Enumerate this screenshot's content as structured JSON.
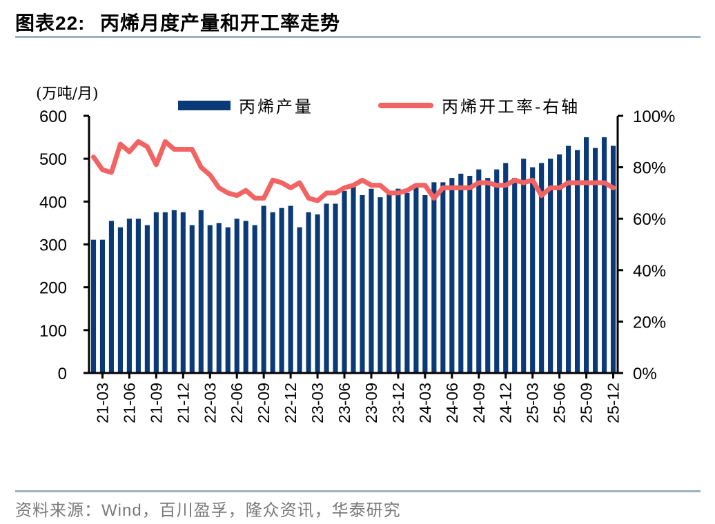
{
  "header": {
    "figure_label": "图表",
    "figure_number": "22:",
    "title": "丙烯月度产量和开工率走势"
  },
  "footer": {
    "source_prefix": "资料来源：",
    "source_latin": "Wind",
    "source_rest": "，百川盈孚，隆众资讯，华泰研究"
  },
  "axis": {
    "left_unit": "(万吨/月)",
    "left_ticks": [
      "0",
      "100",
      "200",
      "300",
      "400",
      "500",
      "600"
    ],
    "right_ticks": [
      "0%",
      "20%",
      "40%",
      "60%",
      "80%",
      "100%"
    ],
    "x_tick_labels": [
      "21-03",
      "21-06",
      "21-09",
      "21-12",
      "22-03",
      "22-06",
      "22-09",
      "22-12",
      "23-03",
      "23-06",
      "23-09",
      "23-12",
      "24-03",
      "24-06",
      "24-09",
      "24-12",
      "25-03",
      "25-06",
      "25-09",
      "25-12"
    ]
  },
  "legend": {
    "bar_label": "丙烯产量",
    "line_label": "丙烯开工率-右轴"
  },
  "colors": {
    "bar": "#0b3a78",
    "line": "#f26463",
    "rule": "#9fb0c0"
  },
  "chart_data": {
    "type": "bar+line",
    "title": "丙烯月度产量和开工率走势",
    "xlabel": "",
    "ylabel": "万吨/月",
    "y2label": "开工率",
    "ylim": [
      0,
      600
    ],
    "y2lim": [
      0,
      100
    ],
    "grid": false,
    "legend_position": "top",
    "categories": [
      "21-02",
      "21-03",
      "21-04",
      "21-05",
      "21-06",
      "21-07",
      "21-08",
      "21-09",
      "21-10",
      "21-11",
      "21-12",
      "22-01",
      "22-02",
      "22-03",
      "22-04",
      "22-05",
      "22-06",
      "22-07",
      "22-08",
      "22-09",
      "22-10",
      "22-11",
      "22-12",
      "23-01",
      "23-02",
      "23-03",
      "23-04",
      "23-05",
      "23-06",
      "23-07",
      "23-08",
      "23-09",
      "23-10",
      "23-11",
      "23-12",
      "24-01",
      "24-02",
      "24-03",
      "24-04",
      "24-05",
      "24-06",
      "24-07",
      "24-08",
      "24-09",
      "24-10",
      "24-11",
      "24-12",
      "25-01",
      "25-02",
      "25-03",
      "25-04",
      "25-05",
      "25-06",
      "25-07",
      "25-08",
      "25-09",
      "25-10",
      "25-11",
      "25-12"
    ],
    "series": [
      {
        "name": "丙烯产量",
        "type": "bar",
        "axis": "left",
        "unit": "万吨/月",
        "values": [
          311,
          311,
          355,
          340,
          360,
          360,
          345,
          375,
          375,
          380,
          375,
          345,
          380,
          345,
          350,
          340,
          360,
          355,
          345,
          390,
          375,
          385,
          390,
          340,
          375,
          370,
          395,
          395,
          425,
          440,
          415,
          430,
          410,
          425,
          430,
          420,
          440,
          415,
          445,
          445,
          455,
          465,
          460,
          475,
          455,
          475,
          490,
          455,
          500,
          480,
          490,
          500,
          510,
          530,
          520,
          550,
          525,
          550,
          530
        ]
      },
      {
        "name": "丙烯开工率-右轴",
        "type": "line",
        "axis": "right",
        "unit": "%",
        "values": [
          84,
          79,
          78,
          89,
          86,
          90,
          88,
          81,
          90,
          87,
          87,
          87,
          80,
          77,
          72,
          70,
          69,
          71,
          68,
          68,
          75,
          74,
          72,
          74,
          68,
          67,
          70,
          70,
          72,
          73,
          75,
          73,
          73,
          70,
          70,
          71,
          73,
          73,
          68,
          72,
          72,
          72,
          72,
          74,
          74,
          73,
          73,
          75,
          74,
          75,
          69,
          72,
          72,
          74,
          74,
          74,
          74,
          74,
          72
        ]
      }
    ]
  }
}
